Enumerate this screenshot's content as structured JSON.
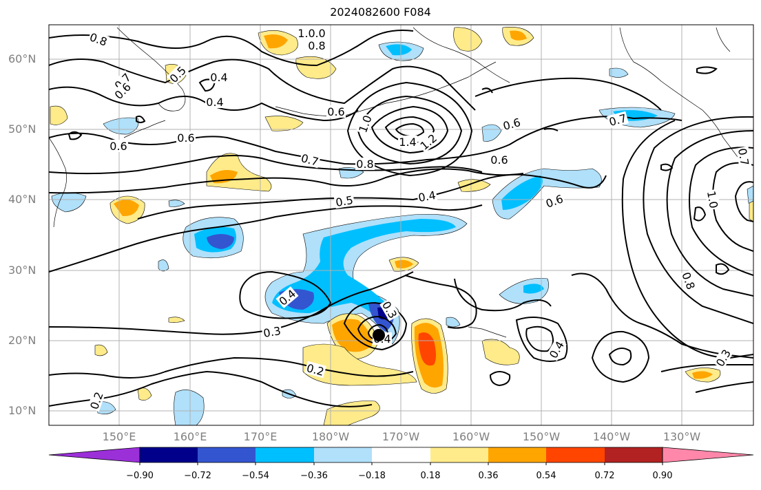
{
  "title": "2024082600 F084",
  "map": {
    "lat_labels": [
      "60°N",
      "50°N",
      "40°N",
      "30°N",
      "20°N",
      "10°N"
    ],
    "lon_labels": [
      "150°E",
      "160°E",
      "170°E",
      "180°W",
      "170°W",
      "160°W",
      "150°W",
      "140°W",
      "130°W"
    ],
    "contour_labels": [
      "0.8",
      "1.0",
      "0.8",
      "0.4",
      "0.5",
      "0.7",
      "0.6",
      "0.4",
      "1.0",
      "0.6",
      "0.6",
      "0.6",
      "1.0",
      "1.4",
      "1.2",
      "0.7",
      "0.8",
      "0.6",
      "0.7",
      "0.6",
      "0.5",
      "0.4",
      "0.6",
      "1.0",
      "0.7",
      "0.8",
      "0.4",
      "0.3",
      "0.3",
      "0.2",
      "0.4",
      "0.4",
      "0.3",
      "0.2"
    ],
    "storm_marker": "storm-center-dot"
  },
  "colorbar": {
    "tick_labels": [
      "−0.90",
      "−0.72",
      "−0.54",
      "−0.36",
      "−0.18",
      "0.18",
      "0.36",
      "0.54",
      "0.72",
      "0.90"
    ],
    "colors": [
      "#9b30d9",
      "#00008b",
      "#3455d0",
      "#00bfff",
      "#b0e0fa",
      "#ffffff",
      "#ffeb8a",
      "#ffa500",
      "#ff4500",
      "#b22222",
      "#ff88aa"
    ]
  }
}
